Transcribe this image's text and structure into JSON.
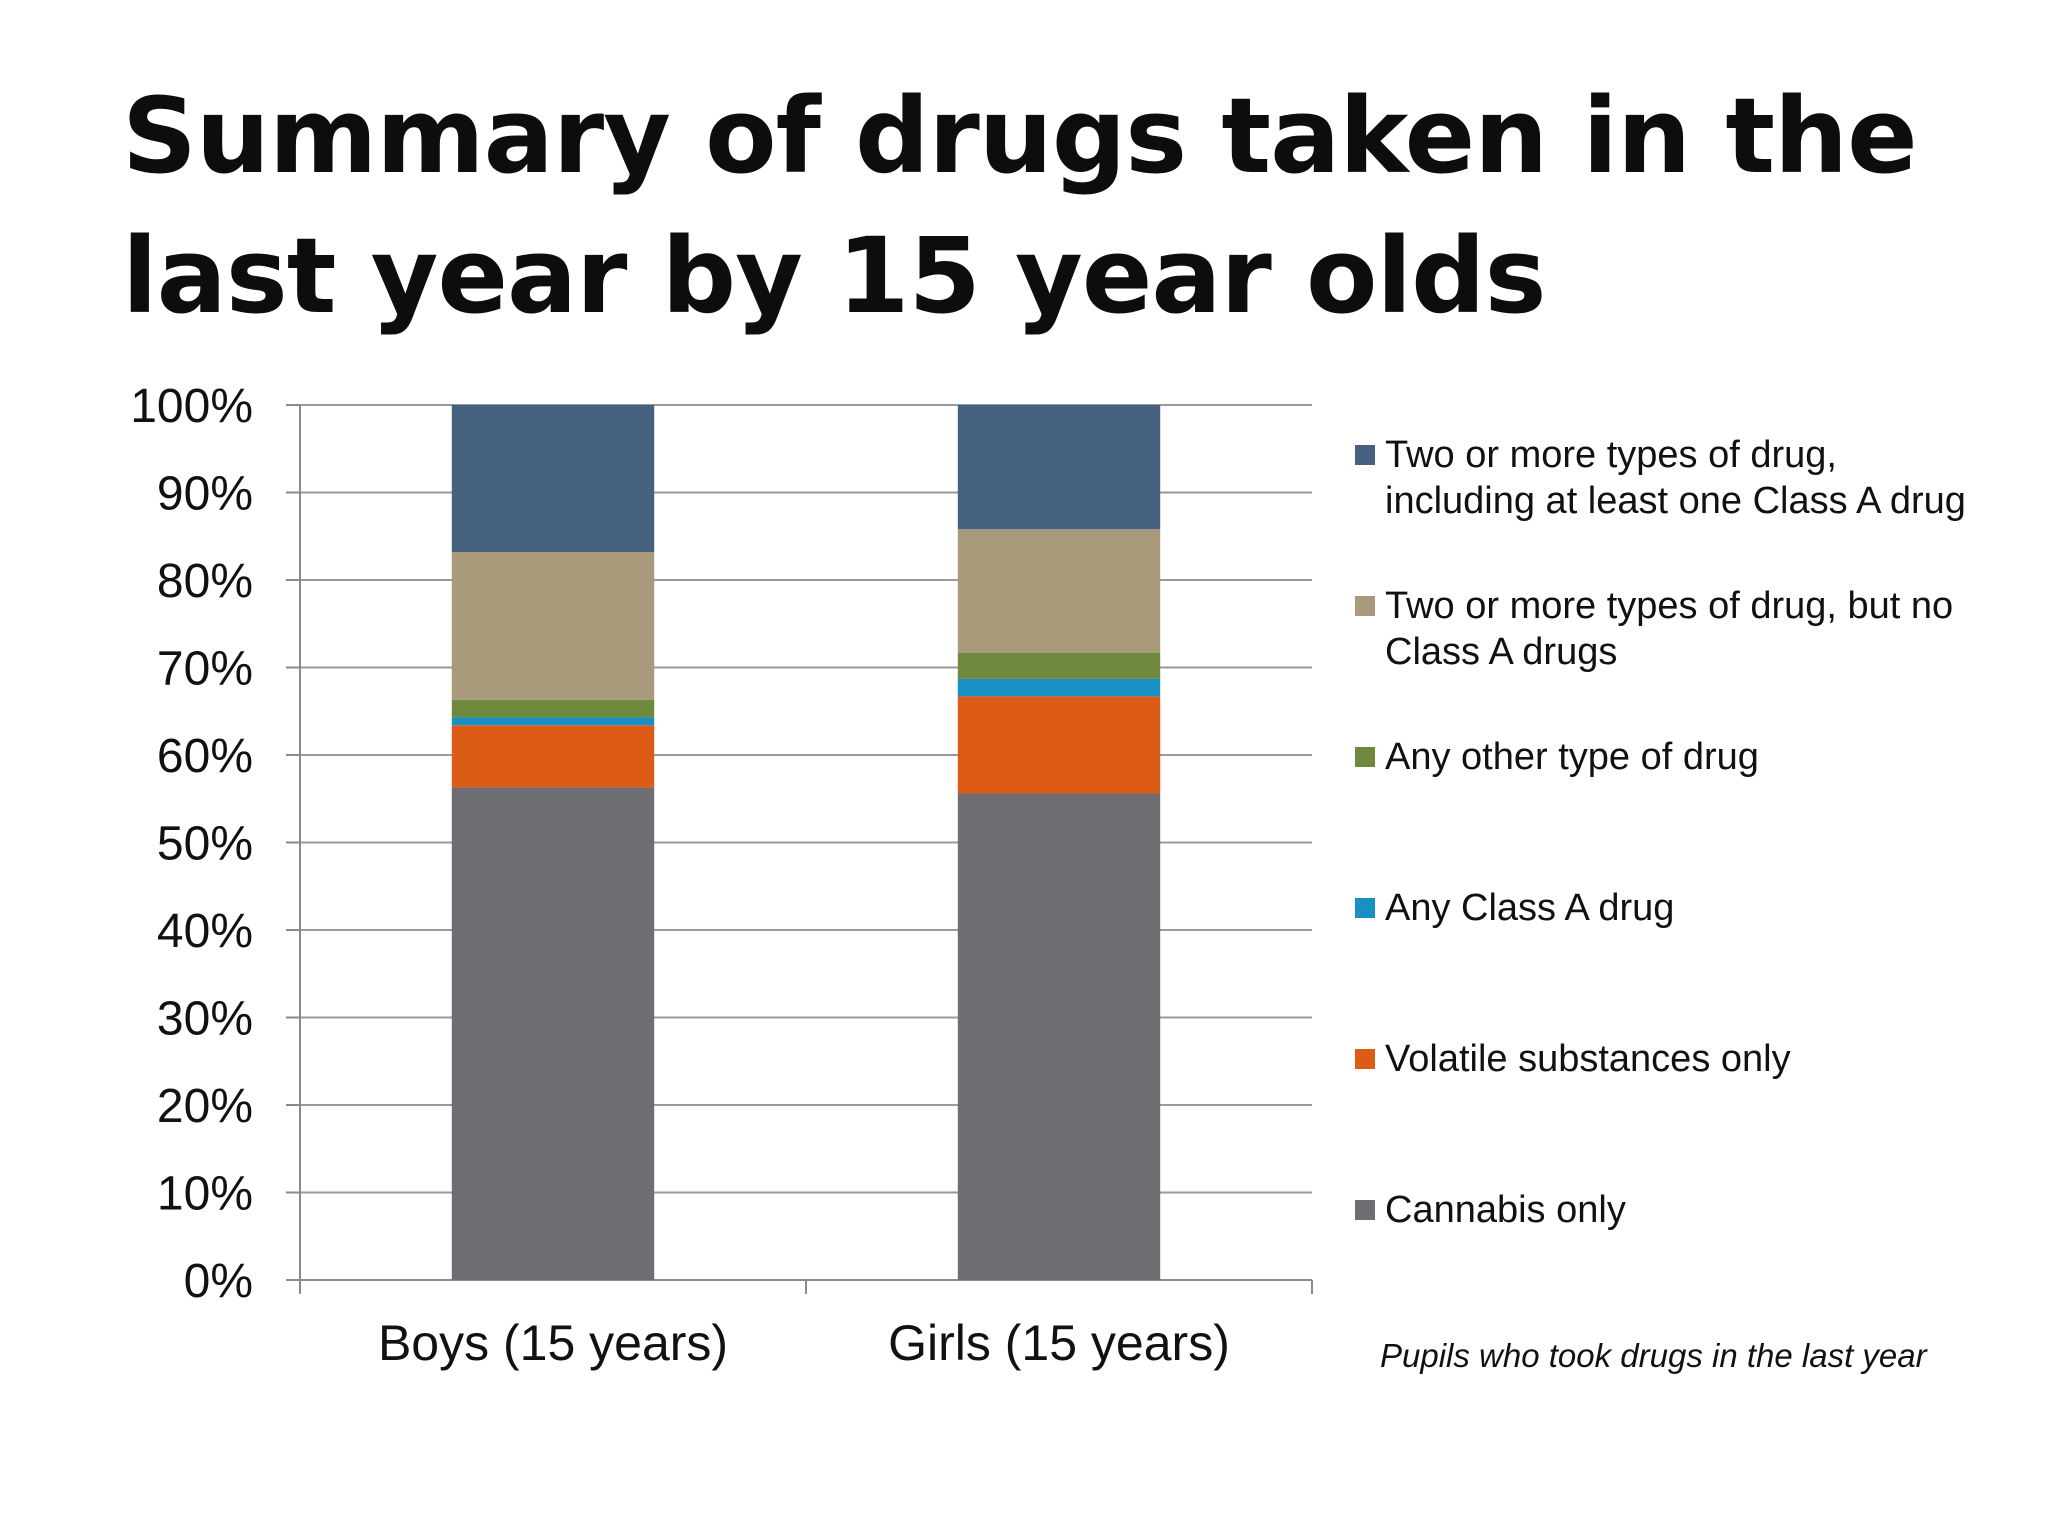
{
  "slide": {
    "title": "Summary of drugs taken in the last year by 15 year olds",
    "note": "Pupils who took drugs in the last year"
  },
  "chart_data": {
    "type": "bar",
    "stacked": true,
    "categories": [
      "Boys (15 years)",
      "Girls (15 years)"
    ],
    "y_ticks": [
      "0%",
      "10%",
      "20%",
      "30%",
      "40%",
      "50%",
      "60%",
      "70%",
      "80%",
      "90%",
      "100%"
    ],
    "ylim": [
      0,
      100
    ],
    "grid": true,
    "legend_position": "right",
    "series": [
      {
        "name": "Cannabis only",
        "color": "#6d6d72",
        "values": [
          56.3,
          55.6
        ]
      },
      {
        "name": "Volatile substances only",
        "color": "#dc5b17",
        "values": [
          7.1,
          11.1
        ]
      },
      {
        "name": "Any Class A drug",
        "color": "#1890c4",
        "values": [
          0.9,
          2.0
        ]
      },
      {
        "name": "Any other type of drug",
        "color": "#6f8a3e",
        "values": [
          2.0,
          3.0
        ]
      },
      {
        "name": "Two or more types of drug, but no Class A drugs",
        "color": "#a99a7b",
        "values": [
          16.9,
          14.1
        ]
      },
      {
        "name": "Two or more types of drug, including at least one Class A drug",
        "color": "#466080",
        "values": [
          16.8,
          14.2
        ]
      }
    ]
  }
}
